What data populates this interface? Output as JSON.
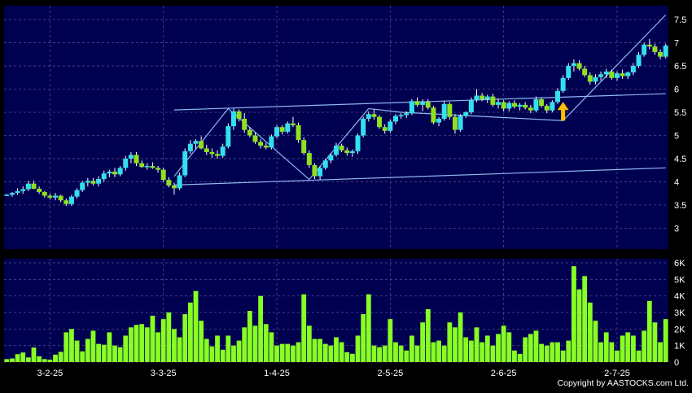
{
  "copyright": "Copyright by AASTOCKS.com Ltd.",
  "colors": {
    "panel_bg": "#000050",
    "grid": "#4a4a8a",
    "up_candle": "#33e0f0",
    "down_candle": "#90e020",
    "volume_bar": "#88ff22",
    "trendline": "#8fb8f0",
    "arrow": "#ffc000",
    "text": "#ffffff"
  },
  "chart_data": [
    {
      "type": "candlestick",
      "x_tick_labels": [
        "3-2-25",
        "3-3-25",
        "1-4-25",
        "2-5-25",
        "2-6-25",
        "2-7-25"
      ],
      "x_tick_bar_index": [
        8,
        29,
        50,
        71,
        92,
        113
      ],
      "y_ticks": [
        3,
        3.5,
        4,
        4.5,
        5,
        5.5,
        6,
        6.5,
        7,
        7.5
      ],
      "ylim": [
        2.55,
        7.8
      ],
      "grid": true,
      "bars": 123,
      "ohlc": [
        [
          3.72,
          3.74,
          3.7,
          3.72
        ],
        [
          3.72,
          3.78,
          3.68,
          3.76
        ],
        [
          3.76,
          3.86,
          3.72,
          3.8
        ],
        [
          3.8,
          3.9,
          3.74,
          3.84
        ],
        [
          3.84,
          4.02,
          3.8,
          3.96
        ],
        [
          3.96,
          4.02,
          3.84,
          3.85
        ],
        [
          3.85,
          3.9,
          3.74,
          3.78
        ],
        [
          3.78,
          3.8,
          3.66,
          3.7
        ],
        [
          3.7,
          3.74,
          3.62,
          3.66
        ],
        [
          3.66,
          3.76,
          3.6,
          3.7
        ],
        [
          3.7,
          3.72,
          3.56,
          3.6
        ],
        [
          3.6,
          3.64,
          3.48,
          3.52
        ],
        [
          3.52,
          3.72,
          3.48,
          3.68
        ],
        [
          3.68,
          3.86,
          3.64,
          3.82
        ],
        [
          3.82,
          4.02,
          3.78,
          3.98
        ],
        [
          3.98,
          4.08,
          3.9,
          4.02
        ],
        [
          4.02,
          4.08,
          3.92,
          3.96
        ],
        [
          3.96,
          4.12,
          3.9,
          4.06
        ],
        [
          4.06,
          4.24,
          4.0,
          4.18
        ],
        [
          4.18,
          4.26,
          4.1,
          4.22
        ],
        [
          4.22,
          4.3,
          4.1,
          4.16
        ],
        [
          4.16,
          4.34,
          4.12,
          4.3
        ],
        [
          4.3,
          4.56,
          4.24,
          4.5
        ],
        [
          4.5,
          4.64,
          4.4,
          4.58
        ],
        [
          4.58,
          4.64,
          4.34,
          4.4
        ],
        [
          4.4,
          4.46,
          4.3,
          4.32
        ],
        [
          4.32,
          4.4,
          4.26,
          4.34
        ],
        [
          4.34,
          4.42,
          4.28,
          4.3
        ],
        [
          4.3,
          4.34,
          4.2,
          4.26
        ],
        [
          4.26,
          4.3,
          4.0,
          4.04
        ],
        [
          4.04,
          4.1,
          3.88,
          3.92
        ],
        [
          3.92,
          3.98,
          3.72,
          3.86
        ],
        [
          3.86,
          4.2,
          3.82,
          4.14
        ],
        [
          4.14,
          4.72,
          4.1,
          4.66
        ],
        [
          4.66,
          4.9,
          4.6,
          4.82
        ],
        [
          4.82,
          4.92,
          4.7,
          4.88
        ],
        [
          4.88,
          4.98,
          4.7,
          4.72
        ],
        [
          4.72,
          4.8,
          4.58,
          4.64
        ],
        [
          4.64,
          4.72,
          4.52,
          4.6
        ],
        [
          4.6,
          4.68,
          4.5,
          4.56
        ],
        [
          4.56,
          4.82,
          4.52,
          4.76
        ],
        [
          4.76,
          5.26,
          4.72,
          5.2
        ],
        [
          5.2,
          5.58,
          5.12,
          5.52
        ],
        [
          5.52,
          5.56,
          5.3,
          5.36
        ],
        [
          5.36,
          5.48,
          5.06,
          5.12
        ],
        [
          5.12,
          5.18,
          4.96,
          5.0
        ],
        [
          5.0,
          5.06,
          4.82,
          4.86
        ],
        [
          4.86,
          4.92,
          4.72,
          4.78
        ],
        [
          4.78,
          4.84,
          4.7,
          4.74
        ],
        [
          4.74,
          5.02,
          4.7,
          4.98
        ],
        [
          4.98,
          5.22,
          4.94,
          5.18
        ],
        [
          5.18,
          5.22,
          5.02,
          5.08
        ],
        [
          5.08,
          5.3,
          5.04,
          5.26
        ],
        [
          5.26,
          5.4,
          5.18,
          5.22
        ],
        [
          5.22,
          5.28,
          4.84,
          4.9
        ],
        [
          4.9,
          4.96,
          4.58,
          4.62
        ],
        [
          4.62,
          4.68,
          4.3,
          4.36
        ],
        [
          4.36,
          4.4,
          4.06,
          4.12
        ],
        [
          4.12,
          4.34,
          4.04,
          4.3
        ],
        [
          4.3,
          4.5,
          4.26,
          4.46
        ],
        [
          4.46,
          4.62,
          4.4,
          4.58
        ],
        [
          4.58,
          4.84,
          4.54,
          4.78
        ],
        [
          4.78,
          4.82,
          4.64,
          4.68
        ],
        [
          4.68,
          4.74,
          4.56,
          4.62
        ],
        [
          4.62,
          4.7,
          4.54,
          4.66
        ],
        [
          4.66,
          5.04,
          4.6,
          5.0
        ],
        [
          5.0,
          5.4,
          4.96,
          5.36
        ],
        [
          5.36,
          5.52,
          5.3,
          5.46
        ],
        [
          5.46,
          5.56,
          5.34,
          5.4
        ],
        [
          5.4,
          5.44,
          5.14,
          5.18
        ],
        [
          5.18,
          5.24,
          5.04,
          5.1
        ],
        [
          5.1,
          5.34,
          5.06,
          5.3
        ],
        [
          5.3,
          5.46,
          5.24,
          5.42
        ],
        [
          5.42,
          5.48,
          5.36,
          5.44
        ],
        [
          5.44,
          5.52,
          5.38,
          5.48
        ],
        [
          5.48,
          5.78,
          5.44,
          5.74
        ],
        [
          5.74,
          5.82,
          5.62,
          5.66
        ],
        [
          5.66,
          5.78,
          5.52,
          5.72
        ],
        [
          5.72,
          5.78,
          5.56,
          5.6
        ],
        [
          5.6,
          5.64,
          5.24,
          5.28
        ],
        [
          5.28,
          5.4,
          5.2,
          5.36
        ],
        [
          5.36,
          5.74,
          5.32,
          5.68
        ],
        [
          5.68,
          5.72,
          5.34,
          5.4
        ],
        [
          5.4,
          5.46,
          5.04,
          5.12
        ],
        [
          5.12,
          5.46,
          5.08,
          5.42
        ],
        [
          5.42,
          5.52,
          5.38,
          5.5
        ],
        [
          5.5,
          5.82,
          5.46,
          5.76
        ],
        [
          5.76,
          6.0,
          5.72,
          5.86
        ],
        [
          5.86,
          5.92,
          5.74,
          5.78
        ],
        [
          5.78,
          5.88,
          5.7,
          5.84
        ],
        [
          5.84,
          5.9,
          5.62,
          5.66
        ],
        [
          5.66,
          5.8,
          5.58,
          5.72
        ],
        [
          5.72,
          5.76,
          5.52,
          5.58
        ],
        [
          5.58,
          5.74,
          5.52,
          5.7
        ],
        [
          5.7,
          5.76,
          5.58,
          5.62
        ],
        [
          5.62,
          5.7,
          5.54,
          5.66
        ],
        [
          5.66,
          5.72,
          5.56,
          5.6
        ],
        [
          5.6,
          5.66,
          5.48,
          5.54
        ],
        [
          5.54,
          5.84,
          5.5,
          5.78
        ],
        [
          5.78,
          5.82,
          5.6,
          5.64
        ],
        [
          5.64,
          5.68,
          5.48,
          5.54
        ],
        [
          5.54,
          5.76,
          5.5,
          5.72
        ],
        [
          5.72,
          6.02,
          5.68,
          5.96
        ],
        [
          5.96,
          6.3,
          5.92,
          6.24
        ],
        [
          6.24,
          6.56,
          6.2,
          6.5
        ],
        [
          6.5,
          6.64,
          6.38,
          6.56
        ],
        [
          6.56,
          6.62,
          6.4,
          6.44
        ],
        [
          6.44,
          6.5,
          6.26,
          6.3
        ],
        [
          6.3,
          6.36,
          6.1,
          6.16
        ],
        [
          6.16,
          6.32,
          6.1,
          6.26
        ],
        [
          6.26,
          6.38,
          6.18,
          6.32
        ],
        [
          6.32,
          6.44,
          6.24,
          6.38
        ],
        [
          6.38,
          6.42,
          6.2,
          6.24
        ],
        [
          6.24,
          6.38,
          6.18,
          6.34
        ],
        [
          6.34,
          6.42,
          6.22,
          6.28
        ],
        [
          6.28,
          6.38,
          6.22,
          6.36
        ],
        [
          6.36,
          6.56,
          6.3,
          6.5
        ],
        [
          6.5,
          6.8,
          6.46,
          6.74
        ],
        [
          6.74,
          7.0,
          6.7,
          6.96
        ],
        [
          6.96,
          7.08,
          6.86,
          6.92
        ],
        [
          6.92,
          6.98,
          6.74,
          6.8
        ],
        [
          6.8,
          6.86,
          6.64,
          6.7
        ],
        [
          6.7,
          6.98,
          6.66,
          6.94
        ]
      ]
    },
    {
      "type": "bar",
      "y_ticks": [
        0,
        1000,
        2000,
        3000,
        4000,
        5000,
        6000
      ],
      "y_tick_labels": [
        "0",
        "1K",
        "2K",
        "3K",
        "4K",
        "5K",
        "6K"
      ],
      "ylim": [
        0,
        6250
      ],
      "grid": true,
      "values": [
        180,
        220,
        480,
        580,
        280,
        880,
        350,
        180,
        150,
        450,
        620,
        1800,
        2000,
        1300,
        650,
        1400,
        1900,
        1100,
        1050,
        1800,
        1000,
        900,
        1600,
        2100,
        2250,
        2300,
        2100,
        2800,
        1800,
        2600,
        3000,
        2000,
        1500,
        2900,
        3600,
        4300,
        2500,
        1400,
        950,
        1600,
        750,
        1600,
        1000,
        1300,
        2100,
        3100,
        2200,
        4000,
        2300,
        1800,
        1000,
        1100,
        1100,
        1000,
        1200,
        4100,
        2200,
        1400,
        1400,
        1100,
        1000,
        1500,
        1200,
        600,
        500,
        1600,
        2900,
        4100,
        1000,
        900,
        1000,
        2600,
        1200,
        1000,
        700,
        1600,
        1000,
        2400,
        3200,
        1200,
        1300,
        1000,
        2400,
        2100,
        3000,
        1500,
        1300,
        2100,
        1200,
        1600,
        1000,
        1700,
        2200,
        1800,
        700,
        500,
        1500,
        1700,
        1900,
        1100,
        1000,
        1200,
        1200,
        700,
        1300,
        5800,
        4400,
        5200,
        3600,
        2500,
        1200,
        1800,
        1200,
        700,
        1600,
        1800,
        1600,
        700,
        1900,
        3700,
        2400,
        1200,
        2600
      ]
    }
  ]
}
